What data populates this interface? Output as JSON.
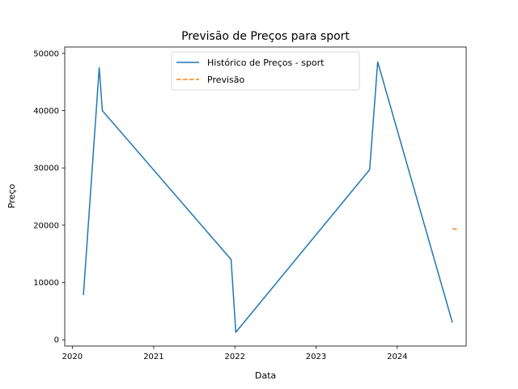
{
  "chart_data": {
    "type": "line",
    "title": "Previsão de Preços para sport",
    "xlabel": "Data",
    "ylabel": "Preço",
    "xlim": [
      "2019-11-28",
      "2024-11-06"
    ],
    "ylim": [
      -1100,
      51100
    ],
    "x_ticks": [
      "2020",
      "2021",
      "2022",
      "2023",
      "2024"
    ],
    "x_tick_dates": [
      "2020-01-01",
      "2021-01-01",
      "2022-01-01",
      "2023-01-01",
      "2024-01-01"
    ],
    "y_ticks": [
      0,
      10000,
      20000,
      30000,
      40000,
      50000
    ],
    "y_tick_labels": [
      "0",
      "10000",
      "20000",
      "30000",
      "40000",
      "50000"
    ],
    "grid": false,
    "legend_position": "top-center",
    "series": [
      {
        "name": "Histórico de Preços - sport",
        "color": "#1f77b4",
        "linestyle": "solid",
        "x": [
          "2020-02-20",
          "2020-05-01",
          "2020-05-15",
          "2021-12-15",
          "2022-01-05",
          "2023-08-30",
          "2023-10-05",
          "2024-09-05"
        ],
        "y": [
          7800,
          47500,
          40000,
          14000,
          1300,
          29700,
          48500,
          3000
        ]
      },
      {
        "name": "Previsão",
        "color": "#ff7f0e",
        "linestyle": "dashed",
        "x": [
          "2024-09-05",
          "2024-09-30"
        ],
        "y": [
          19400,
          19250
        ]
      }
    ]
  }
}
